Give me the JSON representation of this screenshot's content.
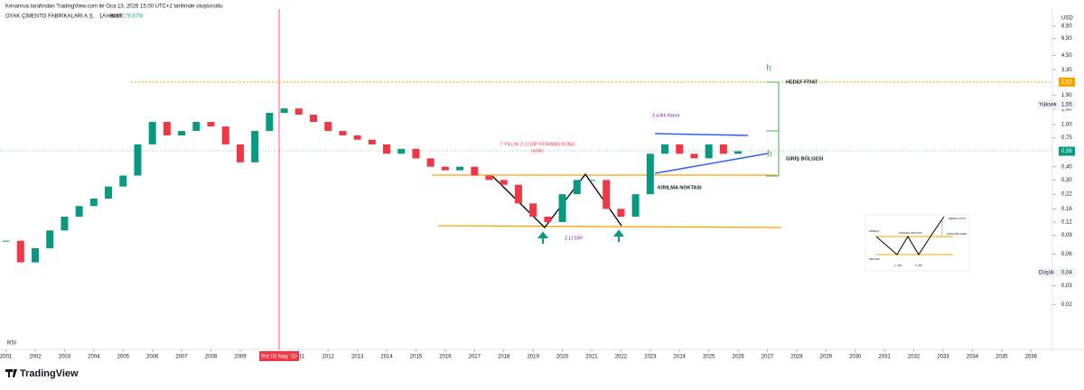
{
  "header": {
    "credit": "Kenanrua tarafından TradingView.com ile Oca 13, 2026 15:00 UTC+2 tarihinde oluşturuldu",
    "symbol": "OYAK ÇİMENTO FABRİKALARI A.Ş. · 1A · BIST",
    "volume_label": "Hacim",
    "volume": "178,67M"
  },
  "chart_data": {
    "type": "candlestick",
    "log_scale": true,
    "currency": "USD",
    "x": [
      2001,
      2001.5,
      2002,
      2002.5,
      2003,
      2003.5,
      2004,
      2004.5,
      2005,
      2005.5,
      2006,
      2006.5,
      2007,
      2007.5,
      2008,
      2008.5,
      2009,
      2009.5,
      2010,
      2010.5,
      2011,
      2011.5,
      2012,
      2012.5,
      2013,
      2013.5,
      2014,
      2014.5,
      2015,
      2015.5,
      2016,
      2016.5,
      2017,
      2017.5,
      2018,
      2018.5,
      2019,
      2019.5,
      2020,
      2020.5,
      2021,
      2021.5,
      2022,
      2022.5,
      2023,
      2023.5,
      2024,
      2024.5,
      2025,
      2025.5,
      2026
    ],
    "values": [
      0.08,
      0.05,
      0.068,
      0.1,
      0.135,
      0.17,
      0.2,
      0.26,
      0.33,
      0.65,
      1.06,
      0.79,
      0.87,
      1.06,
      0.96,
      0.65,
      0.44,
      0.87,
      1.29,
      1.42,
      1.24,
      1.06,
      0.87,
      0.79,
      0.72,
      0.65,
      0.53,
      0.59,
      0.48,
      0.4,
      0.37,
      0.4,
      0.33,
      0.3,
      0.27,
      0.18,
      0.135,
      0.12,
      0.22,
      0.3,
      0.3,
      0.16,
      0.135,
      0.22,
      0.53,
      0.65,
      0.53,
      0.48,
      0.65,
      0.53,
      0.56
    ],
    "yticks": [
      {
        "value": 8.5,
        "label": "8,50"
      },
      {
        "value": 6.5,
        "label": "6,50"
      },
      {
        "value": 4.5,
        "label": "4,50"
      },
      {
        "value": 3.3,
        "label": "3,30"
      },
      {
        "value": 1.9,
        "label": "1,90"
      },
      {
        "value": 1.4,
        "label": "1,40"
      },
      {
        "value": 1,
        "label": "1,00"
      },
      {
        "value": 0.75,
        "label": "0,75"
      },
      {
        "value": 0.4,
        "label": "0,40"
      },
      {
        "value": 0.3,
        "label": "0,30"
      },
      {
        "value": 0.22,
        "label": "0,22"
      },
      {
        "value": 0.16,
        "label": "0,16"
      },
      {
        "value": 0.12,
        "label": "0,12"
      },
      {
        "value": 0.09,
        "label": "0,09"
      },
      {
        "value": 0.06,
        "label": "0,06"
      },
      {
        "value": 0.03,
        "label": "0,03"
      },
      {
        "value": 0.02,
        "label": "0,02"
      }
    ],
    "xticks": [
      2001,
      2002,
      2003,
      2004,
      2005,
      2006,
      2007,
      2008,
      2009,
      2011,
      2012,
      2013,
      2014,
      2015,
      2016,
      2017,
      2018,
      2019,
      2020,
      2021,
      2022,
      2023,
      2024,
      2025,
      2026,
      2027,
      2028,
      2029,
      2030,
      2031,
      2032,
      2033,
      2034,
      2035,
      2036
    ],
    "cursor_date": "Pzt 03 May '10",
    "indicator": "RSI",
    "last_price": {
      "value": 0.56,
      "label": "0,56"
    },
    "target_price": {
      "value": 2.52,
      "label": "2,52"
    },
    "high": {
      "name": "Yüksek",
      "value": 1.55,
      "label": "1,55"
    },
    "low": {
      "name": "Düşük",
      "value": 0.04,
      "label": "0,04"
    },
    "annotations": {
      "formation": "7 YILLIK 2 Lİ DİP FORMASYONU",
      "author": "oyakc",
      "flag": "3 yıllık flama",
      "breakout": "KIRILMA NOKTASI",
      "double_bottom": "2 Lİ DİP",
      "target": "HEDEF FİYAT",
      "entry": "GİRİŞ BÖLGESİ",
      "h": "h"
    }
  },
  "inset": {
    "resistance": "DİRENÇ",
    "support": "DESTEK",
    "bottom1": "1. DİP",
    "bottom2": "2. DİP",
    "breakout": "KIRILMA NOKTASI",
    "target": "HEDEF FİYAT",
    "entry": "GİRİŞ BÖLGESİ"
  },
  "brand": "TradingView"
}
